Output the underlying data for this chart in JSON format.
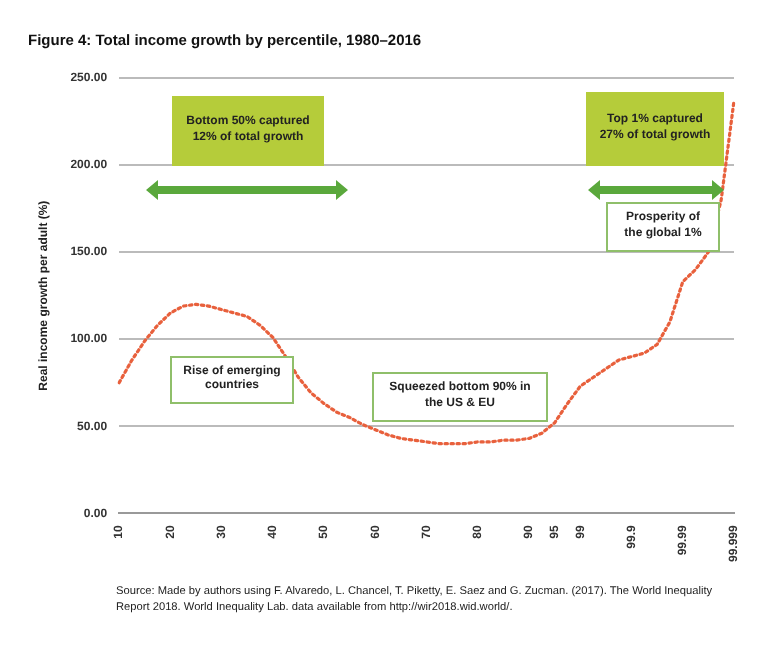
{
  "chart_data": {
    "type": "line",
    "title": "Figure 4: Total income growth by percentile, 1980–2016",
    "ylabel": "Real income growth per adult (%)",
    "categories": [
      "10",
      null,
      null,
      null,
      "20",
      null,
      null,
      null,
      "30",
      null,
      null,
      null,
      "40",
      null,
      null,
      null,
      "50",
      null,
      null,
      null,
      "60",
      null,
      null,
      null,
      "70",
      null,
      null,
      null,
      "80",
      null,
      null,
      null,
      "90",
      null,
      "95",
      null,
      "99",
      null,
      null,
      null,
      "99.9",
      null,
      null,
      null,
      "99.99",
      null,
      null,
      null,
      "99.999"
    ],
    "series": [
      {
        "color": "#e8603c",
        "values": [
          75,
          88,
          99,
          108,
          115,
          119,
          120,
          119,
          117,
          115,
          113,
          108,
          101,
          90,
          78,
          69,
          63,
          58,
          55,
          51,
          48,
          45,
          43,
          42,
          41,
          40,
          40,
          40,
          41,
          41,
          42,
          42,
          43,
          46,
          52,
          63,
          73,
          78,
          83,
          88,
          90,
          92,
          97,
          110,
          133,
          140,
          150,
          180,
          237
        ]
      }
    ],
    "ylim": [
      0,
      250
    ],
    "yticks": [
      {
        "value": 0,
        "label": "0.00"
      },
      {
        "value": 50,
        "label": "50.00"
      },
      {
        "value": 100,
        "label": "100.00"
      },
      {
        "value": 150,
        "label": "150.00"
      },
      {
        "value": 200,
        "label": "200.00"
      },
      {
        "value": 250,
        "label": "250.00"
      }
    ],
    "grid": "y",
    "legend": false,
    "marker": "none",
    "line_style": "dotted",
    "annotations": [
      "Bottom 50% captured 12% of total growth",
      "Top 1% captured 27% of total growth",
      "Prosperity of the global 1%",
      "Rise of emerging countries",
      "Squeezed bottom 90% in the US & EU",
      "Source: Made by authors using F. Alvaredo, L. Chancel, T. Piketty, E. Saez and G. Zucman. (2017). The World Inequality Report 2018. World Inequality Lab. data available from http://wir2018.wid.world/."
    ]
  }
}
